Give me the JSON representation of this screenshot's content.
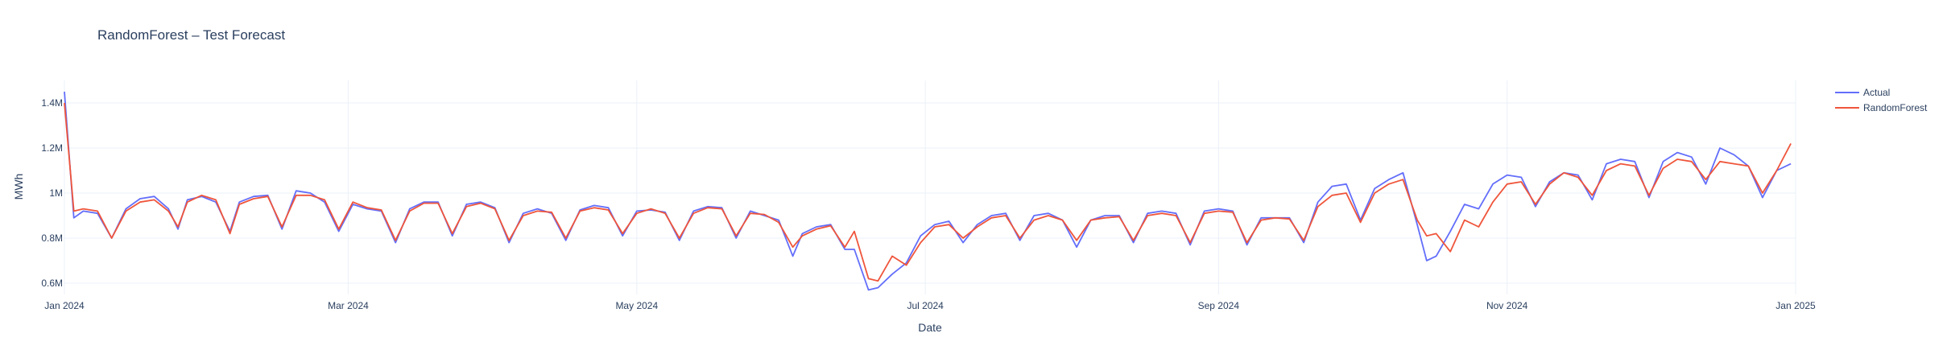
{
  "chart_data": {
    "type": "line",
    "title": "RandomForest – Test Forecast",
    "xlabel": "Date",
    "ylabel": "MWh",
    "x_range": [
      "2024-01-01",
      "2025-01-01"
    ],
    "ylim": [
      550000,
      1500000
    ],
    "y_ticks": [
      {
        "value": 600000,
        "label": "0.6M"
      },
      {
        "value": 800000,
        "label": "0.8M"
      },
      {
        "value": 1000000,
        "label": "1M"
      },
      {
        "value": 1200000,
        "label": "1.2M"
      },
      {
        "value": 1400000,
        "label": "1.4M"
      }
    ],
    "x_ticks": [
      {
        "date": "2024-01-01",
        "label": "Jan 2024"
      },
      {
        "date": "2024-03-01",
        "label": "Mar 2024"
      },
      {
        "date": "2024-05-01",
        "label": "May 2024"
      },
      {
        "date": "2024-07-01",
        "label": "Jul 2024"
      },
      {
        "date": "2024-09-01",
        "label": "Sep 2024"
      },
      {
        "date": "2024-11-01",
        "label": "Nov 2024"
      },
      {
        "date": "2025-01-01",
        "label": "Jan 2025"
      }
    ],
    "grid": true,
    "legend_position": "top-right",
    "series": [
      {
        "name": "Actual",
        "color": "#636efa",
        "points": [
          [
            "2024-01-01",
            1450000
          ],
          [
            "2024-01-03",
            890000
          ],
          [
            "2024-01-05",
            920000
          ],
          [
            "2024-01-08",
            910000
          ],
          [
            "2024-01-11",
            800000
          ],
          [
            "2024-01-14",
            930000
          ],
          [
            "2024-01-17",
            975000
          ],
          [
            "2024-01-20",
            985000
          ],
          [
            "2024-01-23",
            930000
          ],
          [
            "2024-01-25",
            840000
          ],
          [
            "2024-01-27",
            970000
          ],
          [
            "2024-01-30",
            985000
          ],
          [
            "2024-02-02",
            960000
          ],
          [
            "2024-02-05",
            830000
          ],
          [
            "2024-02-07",
            960000
          ],
          [
            "2024-02-10",
            985000
          ],
          [
            "2024-02-13",
            990000
          ],
          [
            "2024-02-16",
            840000
          ],
          [
            "2024-02-19",
            1010000
          ],
          [
            "2024-02-22",
            1000000
          ],
          [
            "2024-02-25",
            960000
          ],
          [
            "2024-02-28",
            830000
          ],
          [
            "2024-03-02",
            950000
          ],
          [
            "2024-03-05",
            930000
          ],
          [
            "2024-03-08",
            920000
          ],
          [
            "2024-03-11",
            780000
          ],
          [
            "2024-03-14",
            930000
          ],
          [
            "2024-03-17",
            960000
          ],
          [
            "2024-03-20",
            960000
          ],
          [
            "2024-03-23",
            810000
          ],
          [
            "2024-03-26",
            950000
          ],
          [
            "2024-03-29",
            960000
          ],
          [
            "2024-04-01",
            935000
          ],
          [
            "2024-04-04",
            780000
          ],
          [
            "2024-04-07",
            910000
          ],
          [
            "2024-04-10",
            930000
          ],
          [
            "2024-04-13",
            910000
          ],
          [
            "2024-04-16",
            790000
          ],
          [
            "2024-04-19",
            925000
          ],
          [
            "2024-04-22",
            945000
          ],
          [
            "2024-04-25",
            935000
          ],
          [
            "2024-04-28",
            810000
          ],
          [
            "2024-05-01",
            920000
          ],
          [
            "2024-05-04",
            925000
          ],
          [
            "2024-05-07",
            915000
          ],
          [
            "2024-05-10",
            790000
          ],
          [
            "2024-05-13",
            920000
          ],
          [
            "2024-05-16",
            940000
          ],
          [
            "2024-05-19",
            935000
          ],
          [
            "2024-05-22",
            800000
          ],
          [
            "2024-05-25",
            920000
          ],
          [
            "2024-05-28",
            900000
          ],
          [
            "2024-05-31",
            880000
          ],
          [
            "2024-06-03",
            720000
          ],
          [
            "2024-06-05",
            820000
          ],
          [
            "2024-06-08",
            850000
          ],
          [
            "2024-06-11",
            860000
          ],
          [
            "2024-06-14",
            750000
          ],
          [
            "2024-06-16",
            750000
          ],
          [
            "2024-06-19",
            570000
          ],
          [
            "2024-06-21",
            580000
          ],
          [
            "2024-06-24",
            640000
          ],
          [
            "2024-06-27",
            690000
          ],
          [
            "2024-06-30",
            810000
          ],
          [
            "2024-07-03",
            860000
          ],
          [
            "2024-07-06",
            875000
          ],
          [
            "2024-07-09",
            780000
          ],
          [
            "2024-07-12",
            860000
          ],
          [
            "2024-07-15",
            900000
          ],
          [
            "2024-07-18",
            910000
          ],
          [
            "2024-07-21",
            790000
          ],
          [
            "2024-07-24",
            900000
          ],
          [
            "2024-07-27",
            910000
          ],
          [
            "2024-07-30",
            880000
          ],
          [
            "2024-08-02",
            760000
          ],
          [
            "2024-08-05",
            880000
          ],
          [
            "2024-08-08",
            900000
          ],
          [
            "2024-08-11",
            900000
          ],
          [
            "2024-08-14",
            780000
          ],
          [
            "2024-08-17",
            910000
          ],
          [
            "2024-08-20",
            920000
          ],
          [
            "2024-08-23",
            910000
          ],
          [
            "2024-08-26",
            770000
          ],
          [
            "2024-08-29",
            920000
          ],
          [
            "2024-09-01",
            930000
          ],
          [
            "2024-09-04",
            920000
          ],
          [
            "2024-09-07",
            770000
          ],
          [
            "2024-09-10",
            890000
          ],
          [
            "2024-09-13",
            890000
          ],
          [
            "2024-09-16",
            890000
          ],
          [
            "2024-09-19",
            780000
          ],
          [
            "2024-09-22",
            960000
          ],
          [
            "2024-09-25",
            1030000
          ],
          [
            "2024-09-28",
            1040000
          ],
          [
            "2024-10-01",
            880000
          ],
          [
            "2024-10-04",
            1020000
          ],
          [
            "2024-10-07",
            1060000
          ],
          [
            "2024-10-10",
            1090000
          ],
          [
            "2024-10-13",
            860000
          ],
          [
            "2024-10-15",
            700000
          ],
          [
            "2024-10-17",
            720000
          ],
          [
            "2024-10-20",
            830000
          ],
          [
            "2024-10-23",
            950000
          ],
          [
            "2024-10-26",
            930000
          ],
          [
            "2024-10-29",
            1040000
          ],
          [
            "2024-11-01",
            1080000
          ],
          [
            "2024-11-04",
            1070000
          ],
          [
            "2024-11-07",
            940000
          ],
          [
            "2024-11-10",
            1050000
          ],
          [
            "2024-11-13",
            1090000
          ],
          [
            "2024-11-16",
            1080000
          ],
          [
            "2024-11-19",
            970000
          ],
          [
            "2024-11-22",
            1130000
          ],
          [
            "2024-11-25",
            1150000
          ],
          [
            "2024-11-28",
            1140000
          ],
          [
            "2024-12-01",
            980000
          ],
          [
            "2024-12-04",
            1140000
          ],
          [
            "2024-12-07",
            1180000
          ],
          [
            "2024-12-10",
            1160000
          ],
          [
            "2024-12-13",
            1040000
          ],
          [
            "2024-12-16",
            1200000
          ],
          [
            "2024-12-19",
            1170000
          ],
          [
            "2024-12-22",
            1120000
          ],
          [
            "2024-12-25",
            980000
          ],
          [
            "2024-12-28",
            1100000
          ],
          [
            "2024-12-31",
            1130000
          ]
        ]
      },
      {
        "name": "RandomForest",
        "color": "#ef553b",
        "points": [
          [
            "2024-01-01",
            1400000
          ],
          [
            "2024-01-03",
            920000
          ],
          [
            "2024-01-05",
            930000
          ],
          [
            "2024-01-08",
            920000
          ],
          [
            "2024-01-11",
            800000
          ],
          [
            "2024-01-14",
            920000
          ],
          [
            "2024-01-17",
            960000
          ],
          [
            "2024-01-20",
            970000
          ],
          [
            "2024-01-23",
            920000
          ],
          [
            "2024-01-25",
            850000
          ],
          [
            "2024-01-27",
            960000
          ],
          [
            "2024-01-30",
            990000
          ],
          [
            "2024-02-02",
            970000
          ],
          [
            "2024-02-05",
            820000
          ],
          [
            "2024-02-07",
            950000
          ],
          [
            "2024-02-10",
            975000
          ],
          [
            "2024-02-13",
            985000
          ],
          [
            "2024-02-16",
            850000
          ],
          [
            "2024-02-19",
            990000
          ],
          [
            "2024-02-22",
            990000
          ],
          [
            "2024-02-25",
            970000
          ],
          [
            "2024-02-28",
            840000
          ],
          [
            "2024-03-02",
            960000
          ],
          [
            "2024-03-05",
            935000
          ],
          [
            "2024-03-08",
            925000
          ],
          [
            "2024-03-11",
            790000
          ],
          [
            "2024-03-14",
            920000
          ],
          [
            "2024-03-17",
            955000
          ],
          [
            "2024-03-20",
            955000
          ],
          [
            "2024-03-23",
            820000
          ],
          [
            "2024-03-26",
            940000
          ],
          [
            "2024-03-29",
            955000
          ],
          [
            "2024-04-01",
            930000
          ],
          [
            "2024-04-04",
            790000
          ],
          [
            "2024-04-07",
            900000
          ],
          [
            "2024-04-10",
            920000
          ],
          [
            "2024-04-13",
            915000
          ],
          [
            "2024-04-16",
            800000
          ],
          [
            "2024-04-19",
            920000
          ],
          [
            "2024-04-22",
            935000
          ],
          [
            "2024-04-25",
            925000
          ],
          [
            "2024-04-28",
            820000
          ],
          [
            "2024-05-01",
            910000
          ],
          [
            "2024-05-04",
            930000
          ],
          [
            "2024-05-07",
            910000
          ],
          [
            "2024-05-10",
            800000
          ],
          [
            "2024-05-13",
            910000
          ],
          [
            "2024-05-16",
            935000
          ],
          [
            "2024-05-19",
            930000
          ],
          [
            "2024-05-22",
            810000
          ],
          [
            "2024-05-25",
            910000
          ],
          [
            "2024-05-28",
            905000
          ],
          [
            "2024-05-31",
            870000
          ],
          [
            "2024-06-03",
            760000
          ],
          [
            "2024-06-05",
            810000
          ],
          [
            "2024-06-08",
            840000
          ],
          [
            "2024-06-11",
            855000
          ],
          [
            "2024-06-14",
            760000
          ],
          [
            "2024-06-16",
            830000
          ],
          [
            "2024-06-19",
            620000
          ],
          [
            "2024-06-21",
            610000
          ],
          [
            "2024-06-24",
            720000
          ],
          [
            "2024-06-27",
            680000
          ],
          [
            "2024-06-30",
            780000
          ],
          [
            "2024-07-03",
            850000
          ],
          [
            "2024-07-06",
            860000
          ],
          [
            "2024-07-09",
            800000
          ],
          [
            "2024-07-12",
            850000
          ],
          [
            "2024-07-15",
            890000
          ],
          [
            "2024-07-18",
            900000
          ],
          [
            "2024-07-21",
            800000
          ],
          [
            "2024-07-24",
            880000
          ],
          [
            "2024-07-27",
            900000
          ],
          [
            "2024-07-30",
            880000
          ],
          [
            "2024-08-02",
            790000
          ],
          [
            "2024-08-05",
            880000
          ],
          [
            "2024-08-08",
            890000
          ],
          [
            "2024-08-11",
            895000
          ],
          [
            "2024-08-14",
            790000
          ],
          [
            "2024-08-17",
            900000
          ],
          [
            "2024-08-20",
            910000
          ],
          [
            "2024-08-23",
            900000
          ],
          [
            "2024-08-26",
            780000
          ],
          [
            "2024-08-29",
            910000
          ],
          [
            "2024-09-01",
            920000
          ],
          [
            "2024-09-04",
            915000
          ],
          [
            "2024-09-07",
            780000
          ],
          [
            "2024-09-10",
            880000
          ],
          [
            "2024-09-13",
            890000
          ],
          [
            "2024-09-16",
            885000
          ],
          [
            "2024-09-19",
            790000
          ],
          [
            "2024-09-22",
            940000
          ],
          [
            "2024-09-25",
            990000
          ],
          [
            "2024-09-28",
            1000000
          ],
          [
            "2024-10-01",
            870000
          ],
          [
            "2024-10-04",
            1000000
          ],
          [
            "2024-10-07",
            1040000
          ],
          [
            "2024-10-10",
            1060000
          ],
          [
            "2024-10-13",
            880000
          ],
          [
            "2024-10-15",
            810000
          ],
          [
            "2024-10-17",
            820000
          ],
          [
            "2024-10-20",
            740000
          ],
          [
            "2024-10-23",
            880000
          ],
          [
            "2024-10-26",
            850000
          ],
          [
            "2024-10-29",
            960000
          ],
          [
            "2024-11-01",
            1040000
          ],
          [
            "2024-11-04",
            1050000
          ],
          [
            "2024-11-07",
            950000
          ],
          [
            "2024-11-10",
            1040000
          ],
          [
            "2024-11-13",
            1090000
          ],
          [
            "2024-11-16",
            1070000
          ],
          [
            "2024-11-19",
            990000
          ],
          [
            "2024-11-22",
            1100000
          ],
          [
            "2024-11-25",
            1130000
          ],
          [
            "2024-11-28",
            1120000
          ],
          [
            "2024-12-01",
            990000
          ],
          [
            "2024-12-04",
            1110000
          ],
          [
            "2024-12-07",
            1150000
          ],
          [
            "2024-12-10",
            1140000
          ],
          [
            "2024-12-13",
            1060000
          ],
          [
            "2024-12-16",
            1140000
          ],
          [
            "2024-12-19",
            1130000
          ],
          [
            "2024-12-22",
            1120000
          ],
          [
            "2024-12-25",
            1000000
          ],
          [
            "2024-12-28",
            1100000
          ],
          [
            "2024-12-31",
            1220000
          ]
        ]
      }
    ]
  }
}
